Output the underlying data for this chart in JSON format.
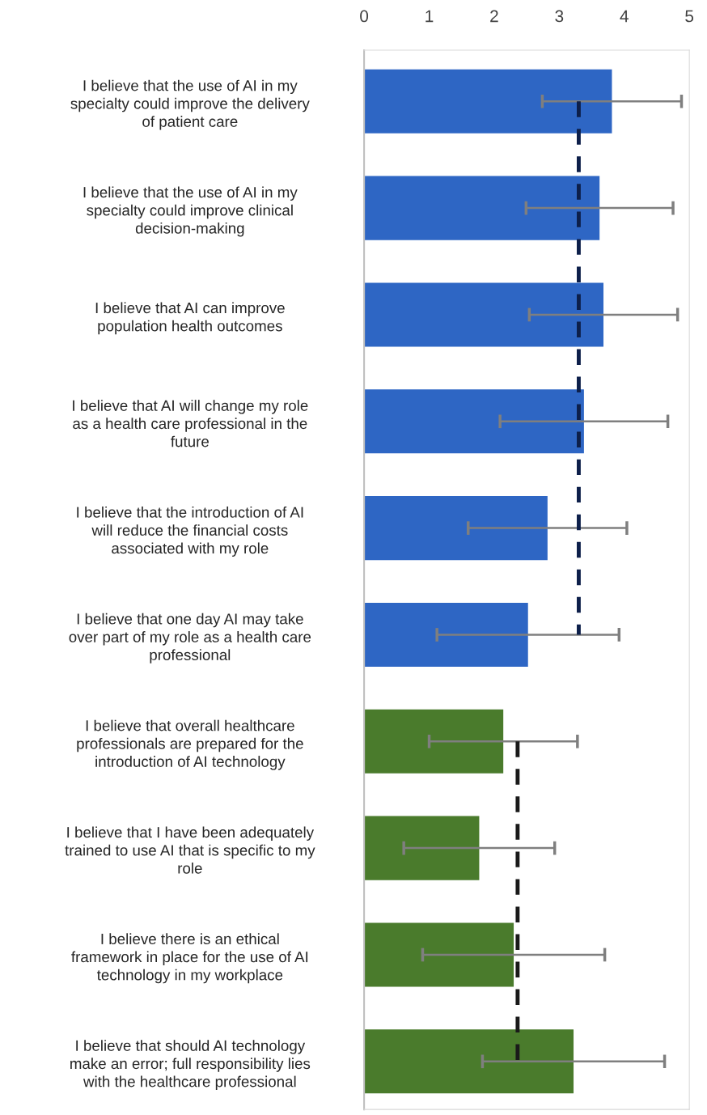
{
  "chart_data": {
    "type": "bar",
    "orientation": "horizontal",
    "categories": [
      "I believe that the use of AI in my\nspecialty could improve the delivery\nof patient care",
      "I believe that the use of AI in my\nspecialty could improve clinical\ndecision-making",
      "I believe that AI can improve\npopulation health outcomes",
      "I believe that AI will change my role\nas a health care professional in the\nfuture",
      "I believe that the introduction of AI\nwill reduce the financial costs\nassociated with my role",
      "I believe that one day AI may take\nover part of my role as a health care\nprofessional",
      "I believe that overall healthcare\nprofessionals are prepared for the\nintroduction of AI technology",
      "I believe that I have been adequately\ntrained to use AI that is specific to my\nrole",
      "I believe there is an ethical\nframework in place for the use of AI\ntechnology in my workplace",
      "I believe that should AI technology\nmake an error; full responsibility lies\nwith the healthcare professional"
    ],
    "series": [
      {
        "colors": [
          "#2e66c4",
          "#2e66c4",
          "#2e66c4",
          "#2e66c4",
          "#2e66c4",
          "#2e66c4",
          "#4a7b2c",
          "#4a7b2c",
          "#4a7b2c",
          "#4a7b2c"
        ],
        "values": [
          3.81,
          3.62,
          3.68,
          3.38,
          2.82,
          2.52,
          2.14,
          1.77,
          2.3,
          3.22
        ],
        "errors": [
          1.07,
          1.13,
          1.14,
          1.29,
          1.22,
          1.4,
          1.14,
          1.16,
          1.4,
          1.4
        ]
      },
      {
        "type": "line",
        "color": "#0d1f4a",
        "line_style": "dashed",
        "values": [
          3.3,
          3.3,
          3.3,
          3.3,
          3.3,
          3.3,
          null,
          null,
          null,
          null
        ]
      },
      {
        "type": "line",
        "color": "#1a1a1a",
        "line_style": "dashed",
        "values": [
          null,
          null,
          null,
          null,
          null,
          null,
          2.36,
          2.36,
          2.36,
          2.36
        ]
      }
    ],
    "xlim": [
      0,
      5
    ],
    "xticks": [
      0,
      1,
      2,
      3,
      4,
      5
    ],
    "grid": false,
    "legend": false
  }
}
